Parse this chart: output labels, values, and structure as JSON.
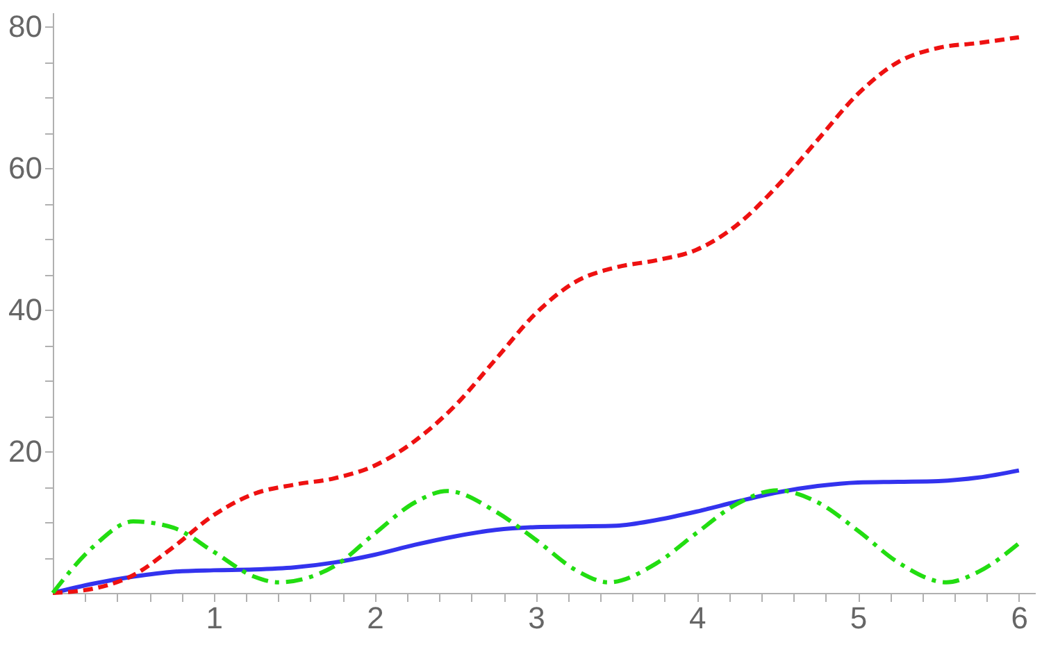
{
  "chart_data": {
    "type": "line",
    "x": [
      0,
      0.25,
      0.5,
      0.75,
      1,
      1.25,
      1.5,
      1.75,
      2,
      2.25,
      2.5,
      2.75,
      3,
      3.25,
      3.5,
      3.75,
      4,
      4.25,
      4.5,
      4.75,
      5,
      5.25,
      5.5,
      5.75,
      6
    ],
    "series": [
      {
        "color": "#3333ee",
        "line_style": "solid",
        "values": [
          0,
          1.3,
          2.3,
          3.0,
          3.2,
          3.3,
          3.6,
          4.3,
          5.4,
          6.8,
          8.0,
          8.9,
          9.3,
          9.4,
          9.5,
          10.3,
          11.5,
          12.9,
          14.2,
          15.1,
          15.6,
          15.7,
          15.8,
          16.3,
          17.3
        ]
      },
      {
        "color": "#ee1111",
        "line_style": "dashed",
        "values": [
          0,
          0.6,
          2.5,
          6.5,
          11.0,
          14.0,
          15.3,
          16.2,
          18.0,
          21.5,
          26.5,
          33.0,
          39.5,
          44.0,
          46.0,
          47.0,
          48.5,
          52.0,
          57.5,
          64.0,
          70.5,
          75.0,
          77.0,
          77.7,
          78.5
        ]
      },
      {
        "color": "#22dd11",
        "line_style": "dashdot",
        "x": [
          0,
          0.25,
          0.5,
          0.75,
          1,
          1.25,
          1.4,
          1.75,
          2,
          2.25,
          2.45,
          2.75,
          3,
          3.25,
          3.45,
          3.75,
          4,
          4.25,
          4.5,
          4.75,
          5,
          5.25,
          5.55,
          5.75,
          6
        ],
        "values": [
          0,
          6.5,
          10.1,
          9.2,
          5.8,
          2.3,
          1.5,
          3.8,
          8.4,
          12.8,
          14.4,
          11.5,
          7.5,
          3.2,
          1.5,
          4.2,
          8.5,
          12.6,
          14.5,
          12.8,
          8.8,
          4.3,
          1.5,
          3.0,
          7.0
        ]
      }
    ],
    "xlim": [
      0,
      6.1
    ],
    "xticks": [
      {
        "value": 0.2,
        "label": null
      },
      {
        "value": 0.4,
        "label": null
      },
      {
        "value": 0.6,
        "label": null
      },
      {
        "value": 0.8,
        "label": null
      },
      1,
      {
        "value": 1.2,
        "label": null
      },
      {
        "value": 1.4,
        "label": null
      },
      {
        "value": 1.6,
        "label": null
      },
      {
        "value": 1.8,
        "label": null
      },
      2,
      {
        "value": 2.2,
        "label": null
      },
      {
        "value": 2.4,
        "label": null
      },
      {
        "value": 2.6,
        "label": null
      },
      {
        "value": 2.8,
        "label": null
      },
      3,
      {
        "value": 3.2,
        "label": null
      },
      {
        "value": 3.4,
        "label": null
      },
      {
        "value": 3.6,
        "label": null
      },
      {
        "value": 3.8,
        "label": null
      },
      4,
      {
        "value": 4.2,
        "label": null
      },
      {
        "value": 4.4,
        "label": null
      },
      {
        "value": 4.6,
        "label": null
      },
      {
        "value": 4.8,
        "label": null
      },
      5,
      {
        "value": 5.2,
        "label": null
      },
      {
        "value": 5.4,
        "label": null
      },
      {
        "value": 5.6,
        "label": null
      },
      {
        "value": 5.8,
        "label": null
      },
      6
    ],
    "ylim": [
      0,
      82
    ],
    "yticks": [
      {
        "value": 5,
        "label": null
      },
      {
        "value": 10,
        "label": null
      },
      {
        "value": 15,
        "label": null
      },
      20,
      {
        "value": 25,
        "label": null
      },
      {
        "value": 30,
        "label": null
      },
      {
        "value": 35,
        "label": null
      },
      40,
      {
        "value": 45,
        "label": null
      },
      {
        "value": 50,
        "label": null
      },
      {
        "value": 55,
        "label": null
      },
      60,
      {
        "value": 65,
        "label": null
      },
      {
        "value": 70,
        "label": null
      },
      {
        "value": 75,
        "label": null
      },
      80
    ],
    "grid": false,
    "legend": false,
    "marker": "none"
  }
}
